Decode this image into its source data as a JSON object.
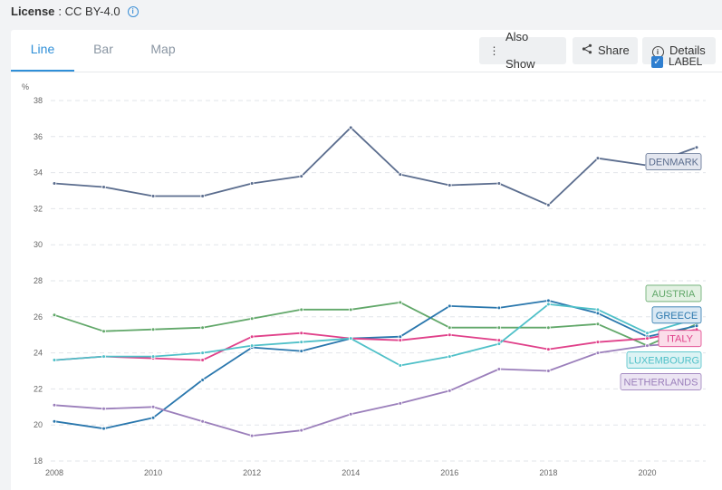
{
  "license": {
    "label": "License",
    "value": ": CC BY-4.0",
    "icon": "info-icon"
  },
  "tabs": [
    {
      "label": "Line",
      "active": true
    },
    {
      "label": "Bar",
      "active": false
    },
    {
      "label": "Map",
      "active": false
    }
  ],
  "toolbar": {
    "also_show": "Also Show",
    "share": "Share",
    "details": "Details"
  },
  "label_toggle": {
    "label": "LABEL",
    "checked": true
  },
  "chart_data": {
    "type": "line",
    "ylabel": "%",
    "xlim": [
      2008,
      2021
    ],
    "ylim": [
      18,
      38
    ],
    "x_ticks": [
      2008,
      2010,
      2012,
      2014,
      2016,
      2018,
      2020
    ],
    "y_ticks": [
      18,
      20,
      22,
      24,
      26,
      28,
      30,
      32,
      34,
      36,
      38
    ],
    "grid": "horizontal dashed",
    "x": [
      2008,
      2009,
      2010,
      2011,
      2012,
      2013,
      2014,
      2015,
      2016,
      2017,
      2018,
      2019,
      2020,
      2021
    ],
    "series": [
      {
        "name": "DENMARK",
        "color": "#5b6d8e",
        "label_bg": "#e3e6ef",
        "label_fg": "#5b6d8e",
        "label_y": 34.6,
        "values": [
          33.4,
          33.2,
          32.7,
          32.7,
          33.4,
          33.8,
          36.5,
          33.9,
          33.3,
          33.4,
          32.2,
          34.8,
          34.4,
          35.4
        ]
      },
      {
        "name": "AUSTRIA",
        "color": "#62a86a",
        "label_bg": "#e3f1e3",
        "label_fg": "#62a86a",
        "label_y": 27.3,
        "values": [
          26.1,
          25.2,
          25.3,
          25.4,
          25.9,
          26.4,
          26.4,
          26.8,
          25.4,
          25.4,
          25.4,
          25.6,
          24.4,
          25.6
        ]
      },
      {
        "name": "GREECE",
        "color": "#2a77ad",
        "label_bg": "#dbe9f4",
        "label_fg": "#2a77ad",
        "label_y": 26.1,
        "values": [
          20.2,
          19.8,
          20.4,
          22.5,
          24.3,
          24.1,
          24.8,
          24.9,
          26.6,
          26.5,
          26.9,
          26.2,
          24.9,
          25.5
        ]
      },
      {
        "name": "ITALY",
        "color": "#e0418a",
        "label_bg": "#fbdde9",
        "label_fg": "#e0418a",
        "label_y": 24.8,
        "values": [
          23.6,
          23.8,
          23.7,
          23.6,
          24.9,
          25.1,
          24.8,
          24.7,
          25.0,
          24.7,
          24.2,
          24.6,
          24.8,
          25.3
        ]
      },
      {
        "name": "LUXEMBOURG",
        "color": "#4fc0c8",
        "label_bg": "#dcf3f4",
        "label_fg": "#4fc0c8",
        "label_y": 23.6,
        "values": [
          23.6,
          23.8,
          23.8,
          24.0,
          24.4,
          24.6,
          24.8,
          23.3,
          23.8,
          24.5,
          26.7,
          26.4,
          25.1,
          25.9
        ]
      },
      {
        "name": "NETHERLANDS",
        "color": "#9b7fbb",
        "label_bg": "#ece5f3",
        "label_fg": "#9b7fbb",
        "label_y": 22.4,
        "values": [
          21.1,
          20.9,
          21.0,
          20.2,
          19.4,
          19.7,
          20.6,
          21.2,
          21.9,
          23.1,
          23.0,
          24.0,
          24.4,
          24.6
        ]
      }
    ]
  }
}
